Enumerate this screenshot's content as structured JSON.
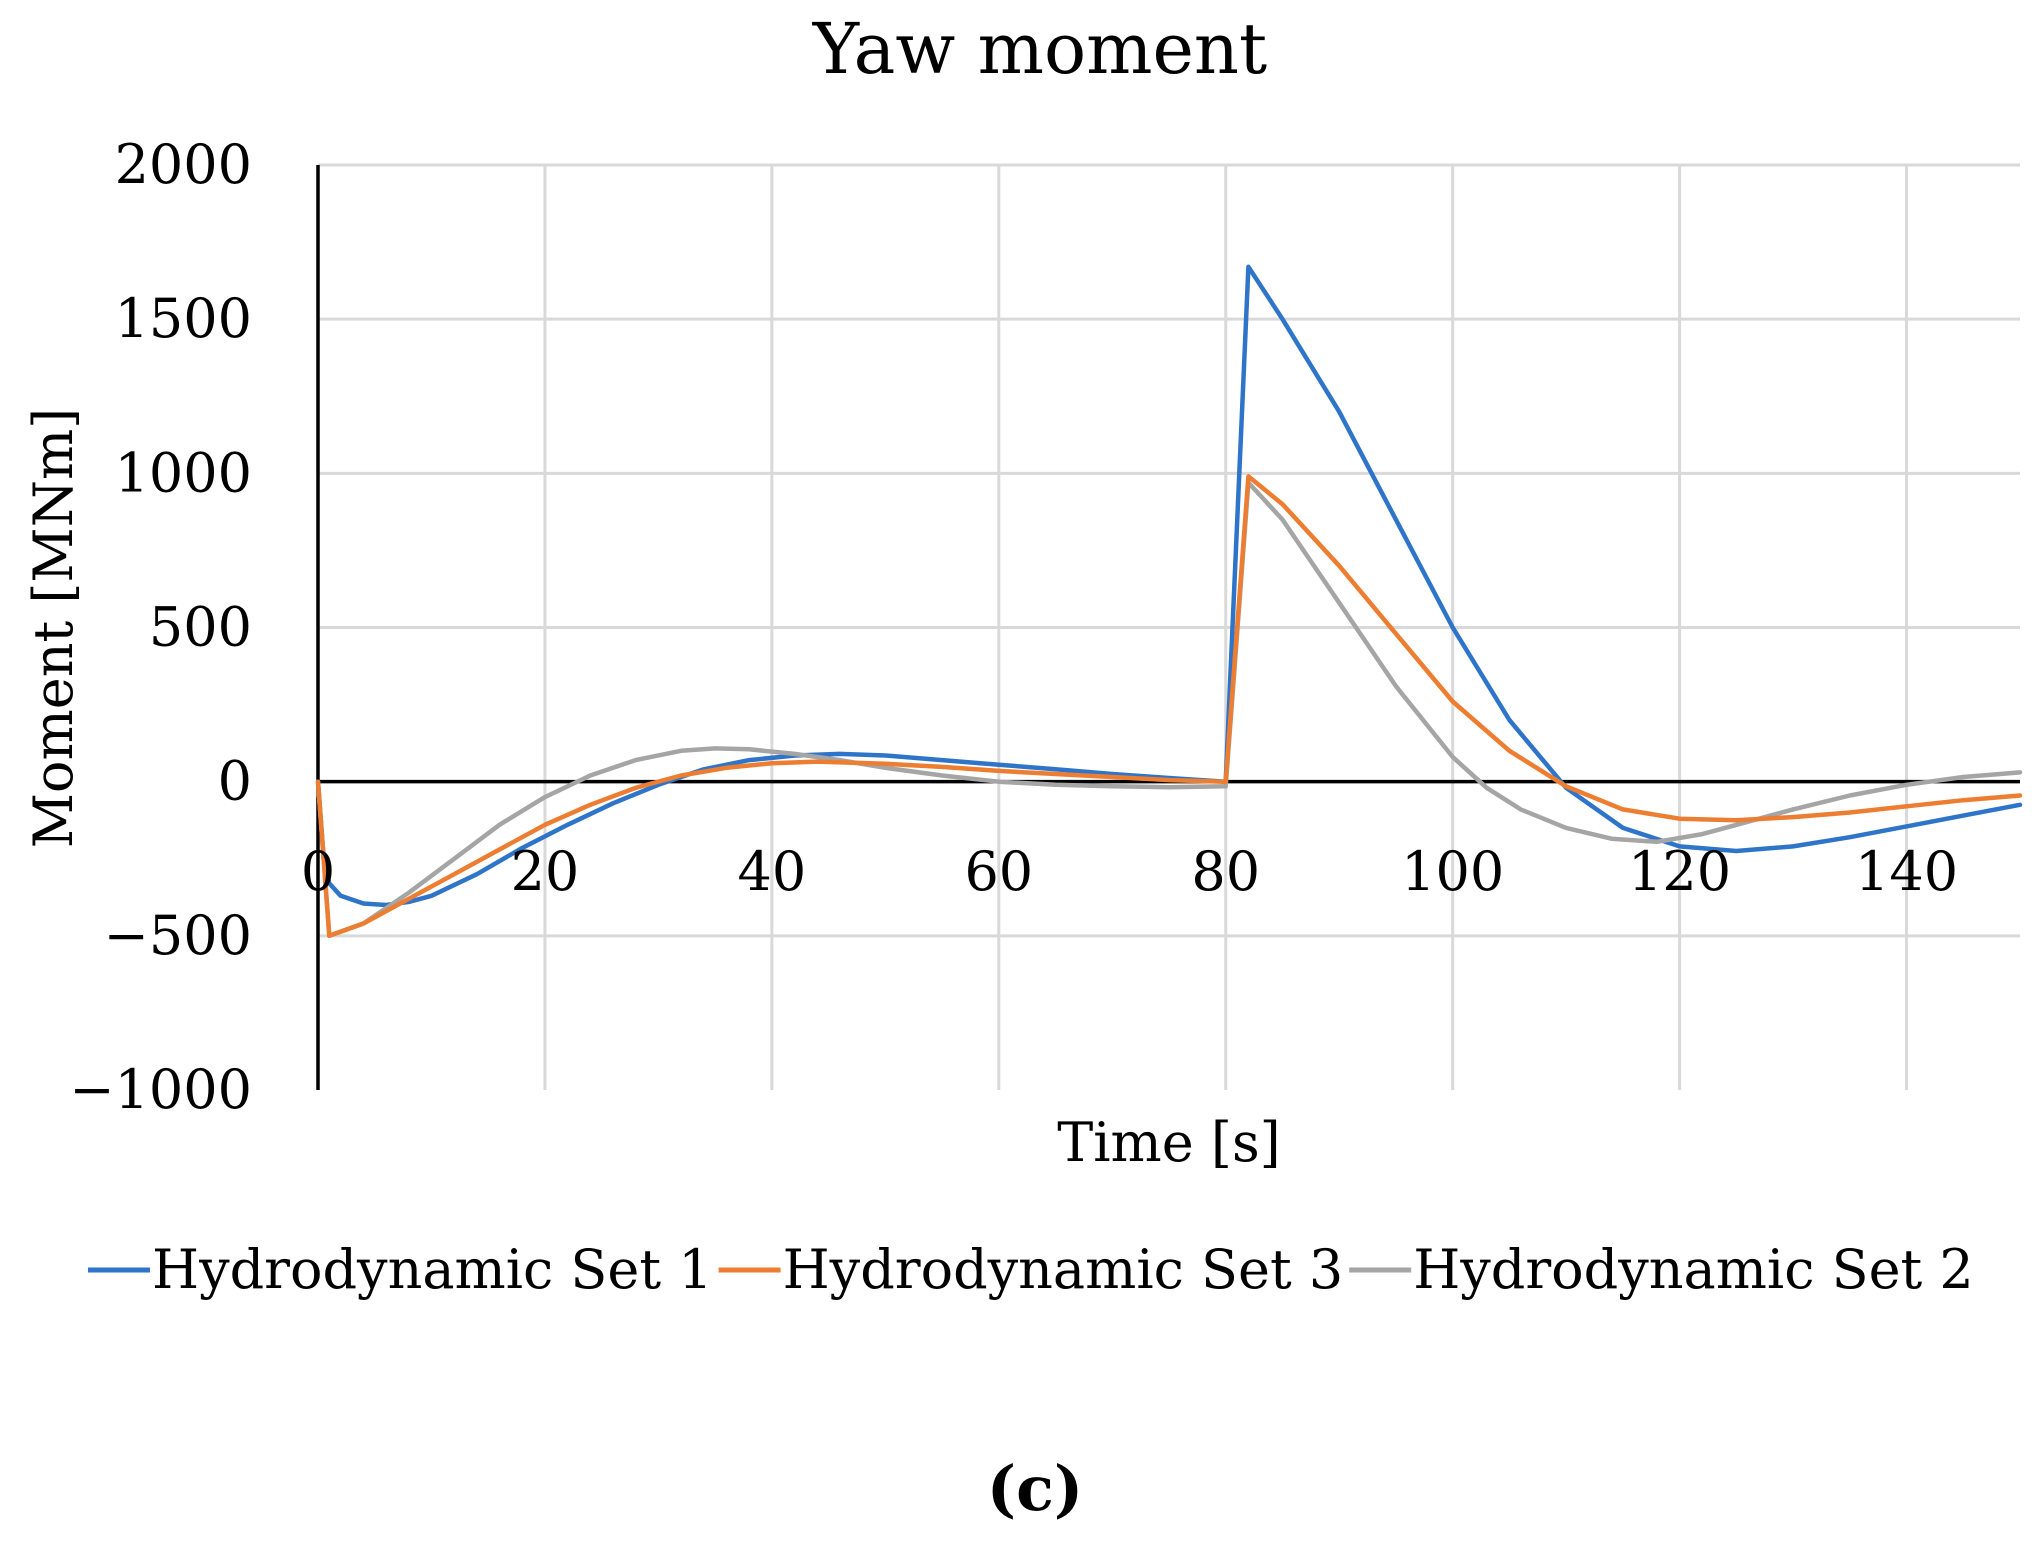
{
  "chart_data": {
    "type": "line",
    "title": "Yaw moment",
    "xlabel": "Time [s]",
    "ylabel": "Moment [MNm]",
    "xlim": [
      0,
      150
    ],
    "ylim": [
      -1000,
      2000
    ],
    "xticks": [
      0,
      20,
      40,
      60,
      80,
      100,
      120,
      140
    ],
    "yticks": [
      2000,
      1500,
      1000,
      500,
      0,
      -500,
      -1000
    ],
    "xtick_labels": [
      "0",
      "20",
      "40",
      "60",
      "80",
      "100",
      "120",
      "140"
    ],
    "ytick_labels": [
      "2000",
      "1500",
      "1000",
      "500",
      "0",
      "−500",
      "−1000"
    ],
    "grid": true,
    "legend_position": "bottom",
    "panel_label": "(c)",
    "series": [
      {
        "name": "Hydrodynamic Set 1",
        "color": "#2e75c9",
        "points": [
          [
            0,
            0
          ],
          [
            0.5,
            -250
          ],
          [
            1,
            -330
          ],
          [
            2,
            -370
          ],
          [
            4,
            -395
          ],
          [
            6,
            -400
          ],
          [
            8,
            -390
          ],
          [
            10,
            -370
          ],
          [
            14,
            -300
          ],
          [
            18,
            -215
          ],
          [
            22,
            -140
          ],
          [
            26,
            -70
          ],
          [
            30,
            -10
          ],
          [
            34,
            40
          ],
          [
            38,
            70
          ],
          [
            42,
            85
          ],
          [
            46,
            90
          ],
          [
            50,
            85
          ],
          [
            55,
            70
          ],
          [
            60,
            55
          ],
          [
            65,
            40
          ],
          [
            70,
            25
          ],
          [
            75,
            12
          ],
          [
            80,
            0
          ],
          [
            82,
            1670
          ],
          [
            85,
            1500
          ],
          [
            90,
            1200
          ],
          [
            95,
            850
          ],
          [
            100,
            500
          ],
          [
            105,
            200
          ],
          [
            110,
            -20
          ],
          [
            115,
            -150
          ],
          [
            120,
            -210
          ],
          [
            125,
            -225
          ],
          [
            130,
            -210
          ],
          [
            135,
            -180
          ],
          [
            140,
            -145
          ],
          [
            145,
            -110
          ],
          [
            150,
            -75
          ]
        ]
      },
      {
        "name": "Hydrodynamic Set 3",
        "color": "#ed7d31",
        "points": [
          [
            0,
            0
          ],
          [
            1,
            -500
          ],
          [
            4,
            -460
          ],
          [
            8,
            -380
          ],
          [
            12,
            -300
          ],
          [
            16,
            -220
          ],
          [
            20,
            -140
          ],
          [
            24,
            -75
          ],
          [
            28,
            -20
          ],
          [
            32,
            20
          ],
          [
            36,
            45
          ],
          [
            40,
            60
          ],
          [
            44,
            65
          ],
          [
            50,
            58
          ],
          [
            55,
            48
          ],
          [
            60,
            35
          ],
          [
            65,
            25
          ],
          [
            70,
            15
          ],
          [
            75,
            5
          ],
          [
            80,
            0
          ],
          [
            82,
            990
          ],
          [
            85,
            900
          ],
          [
            90,
            700
          ],
          [
            95,
            480
          ],
          [
            100,
            260
          ],
          [
            105,
            100
          ],
          [
            110,
            -15
          ],
          [
            115,
            -90
          ],
          [
            120,
            -120
          ],
          [
            125,
            -125
          ],
          [
            130,
            -115
          ],
          [
            135,
            -100
          ],
          [
            140,
            -80
          ],
          [
            145,
            -60
          ],
          [
            150,
            -45
          ]
        ]
      },
      {
        "name": "Hydrodynamic Set 2",
        "color": "#a5a5a5",
        "points": [
          [
            0,
            0
          ],
          [
            1,
            -500
          ],
          [
            4,
            -460
          ],
          [
            8,
            -360
          ],
          [
            12,
            -250
          ],
          [
            16,
            -140
          ],
          [
            20,
            -50
          ],
          [
            24,
            20
          ],
          [
            28,
            70
          ],
          [
            32,
            100
          ],
          [
            35,
            108
          ],
          [
            38,
            105
          ],
          [
            42,
            90
          ],
          [
            46,
            70
          ],
          [
            50,
            45
          ],
          [
            55,
            20
          ],
          [
            60,
            0
          ],
          [
            65,
            -10
          ],
          [
            70,
            -15
          ],
          [
            75,
            -18
          ],
          [
            80,
            -15
          ],
          [
            82,
            970
          ],
          [
            85,
            850
          ],
          [
            90,
            580
          ],
          [
            95,
            310
          ],
          [
            100,
            80
          ],
          [
            103,
            -20
          ],
          [
            106,
            -90
          ],
          [
            110,
            -150
          ],
          [
            114,
            -185
          ],
          [
            118,
            -195
          ],
          [
            122,
            -170
          ],
          [
            126,
            -130
          ],
          [
            130,
            -90
          ],
          [
            135,
            -45
          ],
          [
            140,
            -10
          ],
          [
            145,
            15
          ],
          [
            150,
            30
          ]
        ]
      }
    ]
  }
}
